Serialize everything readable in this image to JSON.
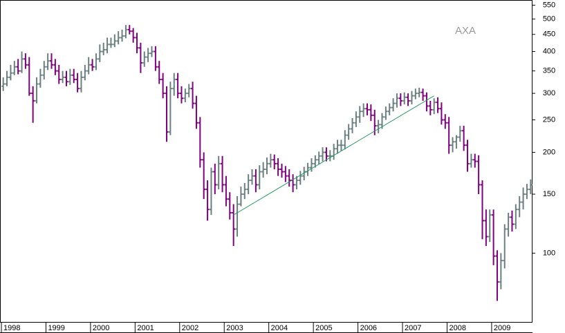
{
  "chart_data": {
    "type": "ohlc",
    "annotation": "AXA",
    "log_scale": true,
    "categories": [
      "1998",
      null,
      null,
      null,
      null,
      null,
      null,
      null,
      null,
      null,
      null,
      null,
      "1999",
      null,
      null,
      null,
      null,
      null,
      null,
      null,
      null,
      null,
      null,
      null,
      "2000",
      null,
      null,
      null,
      null,
      null,
      null,
      null,
      null,
      null,
      null,
      null,
      "2001",
      null,
      null,
      null,
      null,
      null,
      null,
      null,
      null,
      null,
      null,
      null,
      "2002",
      null,
      null,
      null,
      null,
      null,
      null,
      null,
      null,
      null,
      null,
      null,
      "2003",
      null,
      null,
      null,
      null,
      null,
      null,
      null,
      null,
      null,
      null,
      null,
      "2004",
      null,
      null,
      null,
      null,
      null,
      null,
      null,
      null,
      null,
      null,
      null,
      "2005",
      null,
      null,
      null,
      null,
      null,
      null,
      null,
      null,
      null,
      null,
      null,
      "2006",
      null,
      null,
      null,
      null,
      null,
      null,
      null,
      null,
      null,
      null,
      null,
      "2007",
      null,
      null,
      null,
      null,
      null,
      null,
      null,
      null,
      null,
      null,
      null,
      "2008",
      null,
      null,
      null,
      null,
      null,
      null,
      null,
      null,
      null,
      null,
      null,
      "2009",
      null,
      null,
      null,
      null,
      null,
      null,
      null,
      null,
      null,
      null
    ],
    "open": [
      315,
      320,
      335,
      345,
      360,
      350,
      380,
      365,
      300,
      285,
      320,
      340,
      360,
      375,
      365,
      350,
      330,
      335,
      325,
      340,
      330,
      310,
      335,
      350,
      365,
      360,
      380,
      400,
      405,
      420,
      420,
      430,
      440,
      445,
      465,
      460,
      440,
      410,
      370,
      385,
      395,
      400,
      360,
      330,
      300,
      230,
      310,
      330,
      300,
      290,
      300,
      310,
      280,
      245,
      190,
      155,
      135,
      175,
      160,
      185,
      160,
      145,
      132,
      118,
      140,
      150,
      155,
      165,
      170,
      160,
      175,
      178,
      185,
      190,
      185,
      178,
      175,
      170,
      165,
      160,
      165,
      170,
      175,
      180,
      185,
      190,
      195,
      200,
      195,
      195,
      205,
      210,
      210,
      225,
      235,
      245,
      255,
      265,
      270,
      268,
      258,
      240,
      242,
      255,
      265,
      272,
      280,
      290,
      285,
      292,
      285,
      295,
      300,
      302,
      295,
      275,
      268,
      282,
      270,
      250,
      245,
      210,
      215,
      222,
      232,
      210,
      185,
      190,
      188,
      160,
      125,
      112,
      130,
      98,
      82,
      95,
      118,
      128,
      122,
      135,
      142,
      150,
      155
    ],
    "high": [
      335,
      350,
      365,
      375,
      380,
      400,
      395,
      385,
      315,
      335,
      355,
      375,
      395,
      395,
      380,
      365,
      350,
      350,
      355,
      355,
      345,
      350,
      365,
      385,
      380,
      395,
      420,
      425,
      440,
      440,
      450,
      460,
      465,
      480,
      480,
      470,
      455,
      425,
      400,
      410,
      415,
      415,
      375,
      345,
      315,
      325,
      345,
      345,
      315,
      310,
      320,
      325,
      295,
      255,
      200,
      165,
      180,
      185,
      195,
      195,
      170,
      152,
      140,
      148,
      158,
      162,
      172,
      178,
      178,
      183,
      187,
      193,
      198,
      197,
      192,
      185,
      182,
      178,
      172,
      170,
      176,
      181,
      186,
      192,
      196,
      201,
      207,
      207,
      203,
      212,
      218,
      218,
      233,
      243,
      253,
      265,
      275,
      280,
      280,
      278,
      268,
      250,
      262,
      274,
      280,
      290,
      300,
      300,
      302,
      300,
      305,
      310,
      312,
      310,
      302,
      285,
      290,
      292,
      282,
      260,
      255,
      222,
      225,
      240,
      240,
      218,
      198,
      198,
      196,
      165,
      135,
      135,
      135,
      102,
      100,
      122,
      132,
      134,
      140,
      148,
      157,
      161,
      166
    ],
    "low": [
      305,
      315,
      328,
      340,
      342,
      345,
      355,
      295,
      245,
      280,
      312,
      330,
      352,
      355,
      340,
      320,
      322,
      315,
      318,
      322,
      302,
      302,
      328,
      342,
      350,
      352,
      372,
      390,
      395,
      410,
      412,
      420,
      428,
      438,
      450,
      425,
      395,
      345,
      360,
      372,
      385,
      350,
      320,
      290,
      215,
      225,
      295,
      290,
      280,
      282,
      292,
      270,
      235,
      180,
      145,
      125,
      130,
      150,
      155,
      152,
      138,
      126,
      105,
      112,
      138,
      145,
      150,
      160,
      152,
      155,
      168,
      172,
      180,
      178,
      170,
      168,
      163,
      158,
      152,
      155,
      160,
      165,
      170,
      175,
      180,
      184,
      188,
      188,
      188,
      190,
      198,
      202,
      204,
      218,
      228,
      238,
      245,
      255,
      258,
      248,
      225,
      228,
      235,
      250,
      258,
      265,
      272,
      275,
      278,
      275,
      278,
      288,
      292,
      285,
      265,
      258,
      260,
      262,
      242,
      235,
      198,
      200,
      205,
      215,
      202,
      175,
      180,
      180,
      150,
      110,
      105,
      108,
      92,
      72,
      78,
      90,
      112,
      116,
      118,
      128,
      135,
      145,
      150
    ],
    "close": [
      320,
      335,
      345,
      360,
      350,
      380,
      365,
      300,
      285,
      320,
      340,
      360,
      375,
      365,
      350,
      330,
      335,
      325,
      340,
      330,
      310,
      335,
      350,
      365,
      360,
      380,
      400,
      405,
      420,
      420,
      430,
      440,
      445,
      465,
      460,
      440,
      410,
      370,
      385,
      395,
      400,
      360,
      330,
      300,
      230,
      310,
      330,
      300,
      290,
      300,
      310,
      280,
      245,
      190,
      155,
      135,
      175,
      160,
      185,
      160,
      145,
      132,
      118,
      140,
      150,
      155,
      165,
      170,
      160,
      175,
      178,
      185,
      190,
      185,
      178,
      175,
      170,
      165,
      160,
      165,
      170,
      175,
      180,
      185,
      190,
      195,
      200,
      195,
      195,
      205,
      210,
      210,
      225,
      235,
      245,
      255,
      265,
      270,
      268,
      258,
      240,
      242,
      255,
      265,
      272,
      280,
      290,
      285,
      292,
      285,
      295,
      300,
      302,
      295,
      275,
      268,
      282,
      270,
      250,
      245,
      210,
      215,
      222,
      232,
      210,
      185,
      190,
      188,
      160,
      125,
      112,
      130,
      98,
      82,
      95,
      118,
      128,
      122,
      135,
      142,
      150,
      155,
      160
    ],
    "up_color": "#6a8080",
    "down_color": "#800080",
    "trendline": {
      "category_index": [
        62,
        116
      ],
      "values": [
        130,
        295
      ],
      "color": "#2a9a6a"
    },
    "ylim": [
      62,
      570
    ],
    "yticks": [
      100,
      150,
      200,
      250,
      300,
      350,
      400,
      450,
      500,
      550
    ]
  }
}
